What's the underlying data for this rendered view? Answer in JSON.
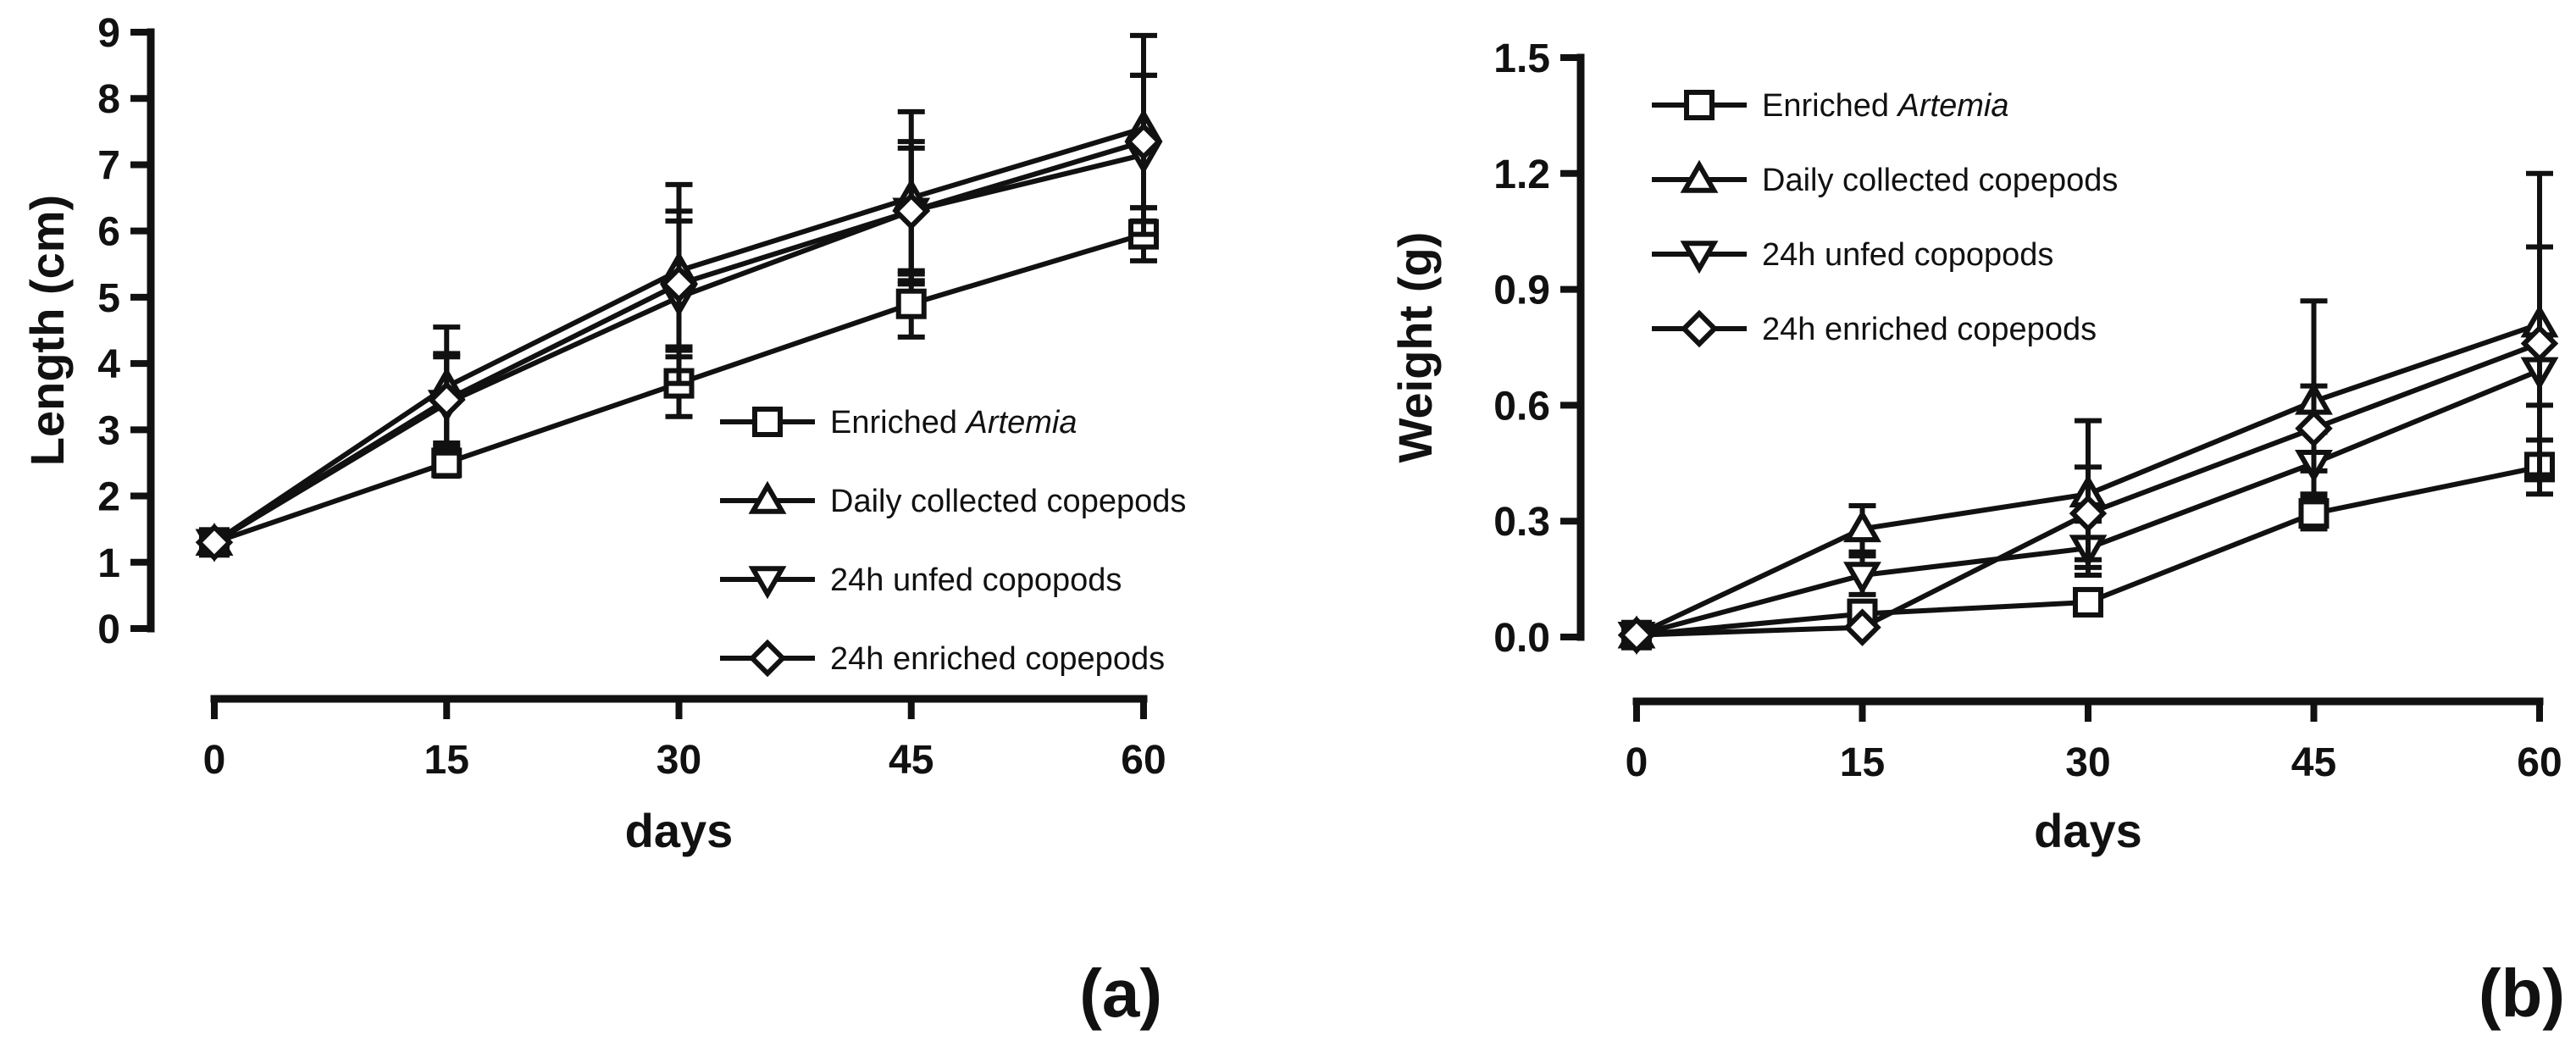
{
  "chart_data": [
    {
      "type": "line",
      "panel_label": "(a)",
      "xlabel": "days",
      "ylabel": "Length (cm)",
      "x": [
        0,
        15,
        30,
        45,
        60
      ],
      "x_ticks": [
        "0",
        "15",
        "30",
        "45",
        "60"
      ],
      "y_ticks": [
        "0",
        "1",
        "2",
        "3",
        "4",
        "5",
        "6",
        "7",
        "8",
        "9"
      ],
      "ylim": [
        0,
        9
      ],
      "legend_position": "bottom-right",
      "series": [
        {
          "name": "Enriched ",
          "name_italic": "Artemia",
          "marker": "square",
          "values": [
            1.3,
            2.5,
            3.7,
            4.9,
            5.95
          ],
          "errors": [
            0.05,
            0.2,
            0.5,
            0.5,
            0.4
          ]
        },
        {
          "name": "Daily collected copepods",
          "name_italic": "",
          "marker": "triangle-up",
          "values": [
            1.3,
            3.65,
            5.4,
            6.5,
            7.55
          ],
          "errors": [
            0.05,
            0.9,
            1.3,
            1.3,
            1.4
          ]
        },
        {
          "name": "24h unfed copopods",
          "name_italic": "",
          "marker": "triangle-down",
          "values": [
            1.3,
            3.4,
            5.0,
            6.3,
            7.15
          ],
          "errors": [
            0.05,
            0.75,
            1.3,
            1.05,
            1.2
          ]
        },
        {
          "name": "24h enriched copepods",
          "name_italic": "",
          "marker": "diamond",
          "values": [
            1.3,
            3.45,
            5.2,
            6.3,
            7.35
          ],
          "errors": [
            0.05,
            0.65,
            0.95,
            0.95,
            1.0
          ]
        }
      ]
    },
    {
      "type": "line",
      "panel_label": "(b)",
      "xlabel": "days",
      "ylabel": "Weight (g)",
      "x": [
        0,
        15,
        30,
        45,
        60
      ],
      "x_ticks": [
        "0",
        "15",
        "30",
        "45",
        "60"
      ],
      "y_ticks": [
        "0.0",
        "0.3",
        "0.6",
        "0.9",
        "1.2",
        "1.5"
      ],
      "ylim": [
        0,
        1.5
      ],
      "legend_position": "top-left",
      "series": [
        {
          "name": "Enriched ",
          "name_italic": "Artemia",
          "marker": "square",
          "values": [
            0.005,
            0.06,
            0.09,
            0.32,
            0.44
          ],
          "errors": [
            0.005,
            0.02,
            0.02,
            0.04,
            0.07
          ]
        },
        {
          "name": "Daily collected copepods",
          "name_italic": "",
          "marker": "triangle-up",
          "values": [
            0.005,
            0.28,
            0.37,
            0.61,
            0.81
          ],
          "errors": [
            0.005,
            0.06,
            0.19,
            0.26,
            0.39
          ]
        },
        {
          "name": "24h unfed copopods",
          "name_italic": "",
          "marker": "triangle-down",
          "values": [
            0.005,
            0.16,
            0.23,
            0.45,
            0.69
          ],
          "errors": [
            0.005,
            0.05,
            0.07,
            0.08,
            0.09
          ]
        },
        {
          "name": "24h enriched copepods",
          "name_italic": "",
          "marker": "diamond",
          "values": [
            0.005,
            0.025,
            0.32,
            0.54,
            0.76
          ],
          "errors": [
            0.005,
            0.01,
            0.12,
            0.11,
            0.25
          ]
        }
      ]
    }
  ]
}
